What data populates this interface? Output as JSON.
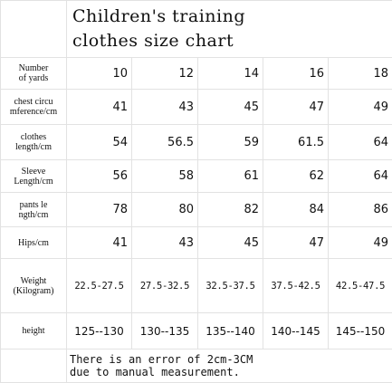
{
  "title": "Children's training\nclothes size chart",
  "rows": [
    {
      "label": "Number\nof yards",
      "values": [
        "10",
        "12",
        "14",
        "16",
        "18"
      ]
    },
    {
      "label": "chest circu\nmference/cm",
      "values": [
        "41",
        "43",
        "45",
        "47",
        "49"
      ]
    },
    {
      "label": "clothes\nlength/cm",
      "values": [
        "54",
        "56.5",
        "59",
        "61.5",
        "64"
      ]
    },
    {
      "label": "Sleeve\nLength/cm",
      "values": [
        "56",
        "58",
        "61",
        "62",
        "64"
      ]
    },
    {
      "label": "pants le\nngth/cm",
      "values": [
        "78",
        "80",
        "82",
        "84",
        "86"
      ]
    },
    {
      "label": "Hips/cm",
      "values": [
        "41",
        "43",
        "45",
        "47",
        "49"
      ]
    },
    {
      "label": "Weight\n(Kilogram)",
      "values": [
        "22.5-27.5",
        "27.5-32.5",
        "32.5-37.5",
        "37.5-42.5",
        "42.5-47.5"
      ]
    },
    {
      "label": "height",
      "values": [
        "125--130",
        "130--135",
        "135--140",
        "140--145",
        "145--150"
      ]
    }
  ],
  "note": "There is an error of 2cm-3CM\ndue to manual measurement."
}
